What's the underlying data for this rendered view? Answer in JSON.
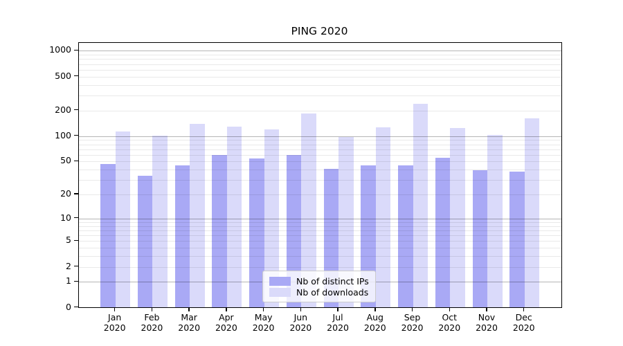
{
  "title": "PING 2020",
  "chart_data": {
    "type": "bar",
    "title": "PING 2020",
    "categories": [
      "Jan 2020",
      "Feb 2020",
      "Mar 2020",
      "Apr 2020",
      "May 2020",
      "Jun 2020",
      "Jul 2020",
      "Aug 2020",
      "Sep 2020",
      "Oct 2020",
      "Nov 2020",
      "Dec 2020"
    ],
    "series": [
      {
        "name": "Nb of distinct IPs",
        "color": "#a9a9f5",
        "values": [
          47,
          34,
          45,
          60,
          54,
          60,
          41,
          45,
          45,
          55,
          39,
          38
        ]
      },
      {
        "name": "Nb of downloads",
        "color": "#dadafa",
        "values": [
          113,
          101,
          139,
          130,
          120,
          184,
          98,
          126,
          240,
          124,
          104,
          162
        ]
      }
    ],
    "xlabel": "",
    "ylabel": "",
    "yscale": "symlog (position proportional to ln(1+x))",
    "y_ticks": [
      0,
      1,
      2,
      5,
      10,
      20,
      50,
      100,
      200,
      500,
      1000
    ],
    "y_minor_gridlines": [
      3,
      4,
      6,
      7,
      8,
      9,
      30,
      40,
      60,
      70,
      80,
      90,
      300,
      400,
      600,
      700,
      800,
      900
    ],
    "y_major_gridlines": [
      1,
      10,
      100,
      1000
    ],
    "ylim": [
      0,
      1240
    ],
    "grid": true,
    "grid_on_top_of_bars": true,
    "legend_position": "inside lower-center",
    "colors": {
      "major_grid": "#b7b7b7",
      "minor_grid": "#ebebeb",
      "spine": "#000000",
      "text": "#000000",
      "background": "#ffffff"
    }
  }
}
